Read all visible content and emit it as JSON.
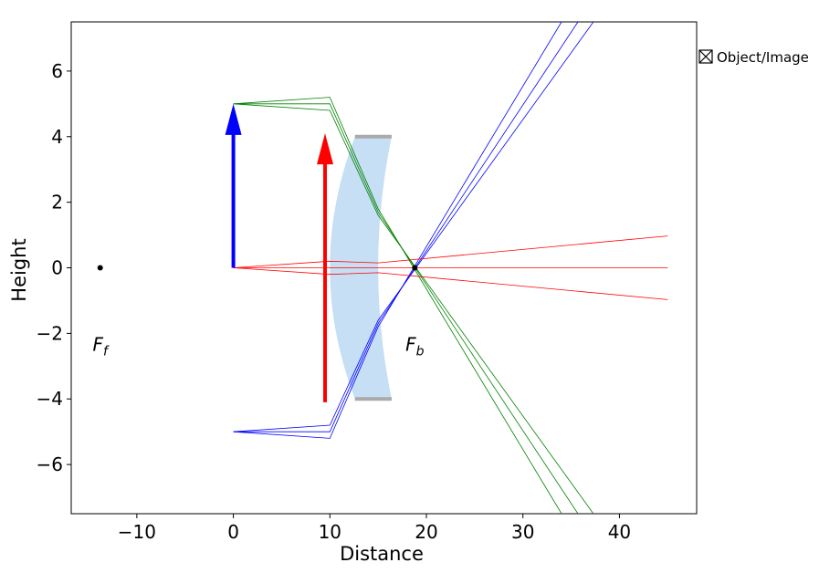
{
  "chart_data": {
    "type": "ray-diagram",
    "xlabel": "Distance",
    "ylabel": "Height",
    "xlim": [
      -16.8,
      48
    ],
    "ylim": [
      -7.5,
      7.5
    ],
    "xticks": [
      -10,
      0,
      10,
      20,
      30,
      40
    ],
    "yticks": [
      -6,
      -4,
      -2,
      0,
      2,
      4,
      6
    ],
    "xtick_labels": [
      "−10",
      "0",
      "10",
      "20",
      "30",
      "40"
    ],
    "ytick_labels": [
      "−6",
      "−4",
      "−2",
      "0",
      "2",
      "4",
      "6"
    ],
    "lens": {
      "left_edge_x": 12.6,
      "right_edge_x": 16.4,
      "left_vertex_x": 10.0,
      "right_vertex_x": 15.0,
      "half_height": 4.0,
      "fill_color": "#c6dff4",
      "rim_color": "#aaaaaa"
    },
    "object": {
      "x": 0,
      "base_y": 0,
      "top_y": 5,
      "color": "#0000ff"
    },
    "image": {
      "x": 9.5,
      "base_y": -4.1,
      "top_y": 4.1,
      "color": "#ff0000"
    },
    "focal_points": [
      {
        "name": "front",
        "label": "F",
        "sub": "f",
        "x": -13.8,
        "y": 0
      },
      {
        "name": "back",
        "label": "F",
        "sub": "b",
        "x": 18.8,
        "y": 0
      }
    ],
    "ray_bundles": [
      {
        "name": "from-object-top",
        "color": "#008000",
        "rays": [
          [
            [
              0,
              5
            ],
            [
              10,
              5.2
            ],
            [
              15,
              1.8
            ],
            [
              34,
              -7.5
            ]
          ],
          [
            [
              0,
              5
            ],
            [
              10,
              5.0
            ],
            [
              15,
              1.7
            ],
            [
              35.7,
              -7.5
            ]
          ],
          [
            [
              0,
              5
            ],
            [
              10,
              4.8
            ],
            [
              15,
              1.6
            ],
            [
              37.3,
              -7.5
            ]
          ]
        ]
      },
      {
        "name": "from-object-bottom",
        "color": "#0000ff",
        "rays": [
          [
            [
              0,
              -5
            ],
            [
              10,
              -5.2
            ],
            [
              15,
              -1.8
            ],
            [
              34,
              7.5
            ]
          ],
          [
            [
              0,
              -5
            ],
            [
              10,
              -5.0
            ],
            [
              15,
              -1.7
            ],
            [
              35.7,
              7.5
            ]
          ],
          [
            [
              0,
              -5
            ],
            [
              10,
              -4.8
            ],
            [
              15,
              -1.6
            ],
            [
              37.3,
              7.5
            ]
          ]
        ]
      },
      {
        "name": "from-object-base",
        "color": "#ff0000",
        "rays": [
          [
            [
              0,
              0
            ],
            [
              10,
              0.2
            ],
            [
              15,
              0.15
            ],
            [
              45,
              0.97
            ]
          ],
          [
            [
              0,
              0
            ],
            [
              10,
              0
            ],
            [
              15,
              0
            ],
            [
              45,
              0
            ]
          ],
          [
            [
              0,
              0
            ],
            [
              10,
              -0.2
            ],
            [
              15,
              -0.15
            ],
            [
              45,
              -0.97
            ]
          ]
        ]
      }
    ],
    "legend": {
      "label": "Object/Image",
      "placement": "outside-right"
    }
  }
}
